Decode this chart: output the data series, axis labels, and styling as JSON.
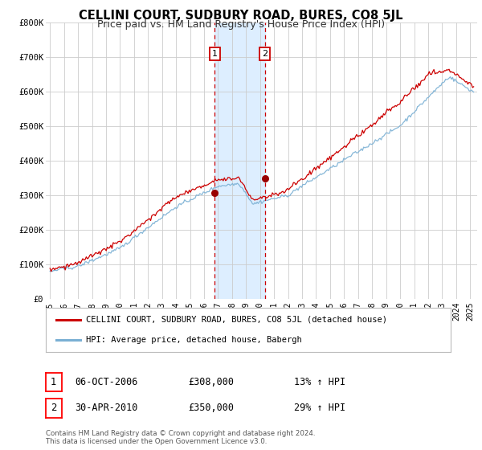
{
  "title": "CELLINI COURT, SUDBURY ROAD, BURES, CO8 5JL",
  "subtitle": "Price paid vs. HM Land Registry's House Price Index (HPI)",
  "ylim": [
    0,
    800000
  ],
  "yticks": [
    0,
    100000,
    200000,
    300000,
    400000,
    500000,
    600000,
    700000,
    800000
  ],
  "ytick_labels": [
    "£0",
    "£100K",
    "£200K",
    "£300K",
    "£400K",
    "£500K",
    "£600K",
    "£700K",
    "£800K"
  ],
  "xlim_start": 1994.7,
  "xlim_end": 2025.5,
  "xticks": [
    1995,
    1996,
    1997,
    1998,
    1999,
    2000,
    2001,
    2002,
    2003,
    2004,
    2005,
    2006,
    2007,
    2008,
    2009,
    2010,
    2011,
    2012,
    2013,
    2014,
    2015,
    2016,
    2017,
    2018,
    2019,
    2020,
    2021,
    2022,
    2023,
    2024,
    2025
  ],
  "legend_line1": "CELLINI COURT, SUDBURY ROAD, BURES, CO8 5JL (detached house)",
  "legend_line2": "HPI: Average price, detached house, Babergh",
  "line1_color": "#cc0000",
  "line2_color": "#7ab0d4",
  "marker_color": "#990000",
  "annotation1_label": "1",
  "annotation1_date": 2006.77,
  "annotation1_price": 308000,
  "annotation1_info_date": "06-OCT-2006",
  "annotation1_info_price": "£308,000",
  "annotation1_info_hpi": "13% ↑ HPI",
  "annotation2_label": "2",
  "annotation2_date": 2010.33,
  "annotation2_price": 350000,
  "annotation2_info_date": "30-APR-2010",
  "annotation2_info_price": "£350,000",
  "annotation2_info_hpi": "29% ↑ HPI",
  "shade_start": 2006.77,
  "shade_end": 2010.33,
  "shade_color": "#ddeeff",
  "footer1": "Contains HM Land Registry data © Crown copyright and database right 2024.",
  "footer2": "This data is licensed under the Open Government Licence v3.0.",
  "background_color": "#ffffff",
  "grid_color": "#cccccc",
  "title_fontsize": 10.5,
  "subtitle_fontsize": 9
}
